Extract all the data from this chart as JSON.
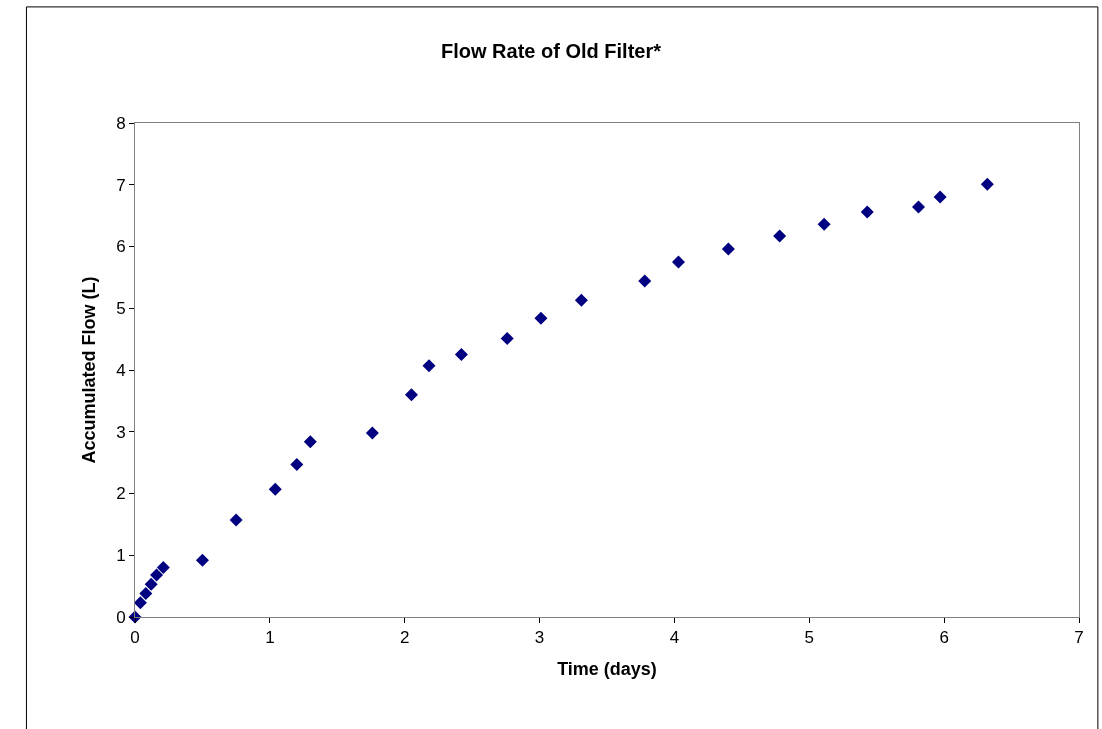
{
  "chart_data": {
    "type": "scatter",
    "title": "Flow Rate of Old Filter*",
    "xlabel": "Time (days)",
    "ylabel": "Accumulated Flow (L)",
    "x": [
      0,
      0.04,
      0.08,
      0.12,
      0.16,
      0.21,
      0.5,
      0.75,
      1.04,
      1.2,
      1.3,
      1.76,
      2.05,
      2.18,
      2.42,
      2.76,
      3.01,
      3.31,
      3.78,
      4.03,
      4.4,
      4.78,
      5.11,
      5.43,
      5.81,
      5.97,
      6.32
    ],
    "series": [
      {
        "color": "#000080",
        "values": [
          0,
          0.23,
          0.38,
          0.53,
          0.68,
          0.8,
          0.92,
          1.57,
          2.07,
          2.47,
          2.84,
          2.98,
          3.6,
          4.07,
          4.25,
          4.51,
          4.84,
          5.13,
          5.44,
          5.75,
          5.96,
          6.17,
          6.36,
          6.56,
          6.64,
          6.8,
          7.01
        ]
      }
    ],
    "xlim": [
      0,
      7
    ],
    "xticks": [
      0,
      1,
      2,
      3,
      4,
      5,
      6,
      7
    ],
    "ylim": [
      0,
      8
    ],
    "yticks": [
      0,
      1,
      2,
      3,
      4,
      5,
      6,
      7,
      8
    ],
    "marker": "diamond",
    "legend": false
  }
}
